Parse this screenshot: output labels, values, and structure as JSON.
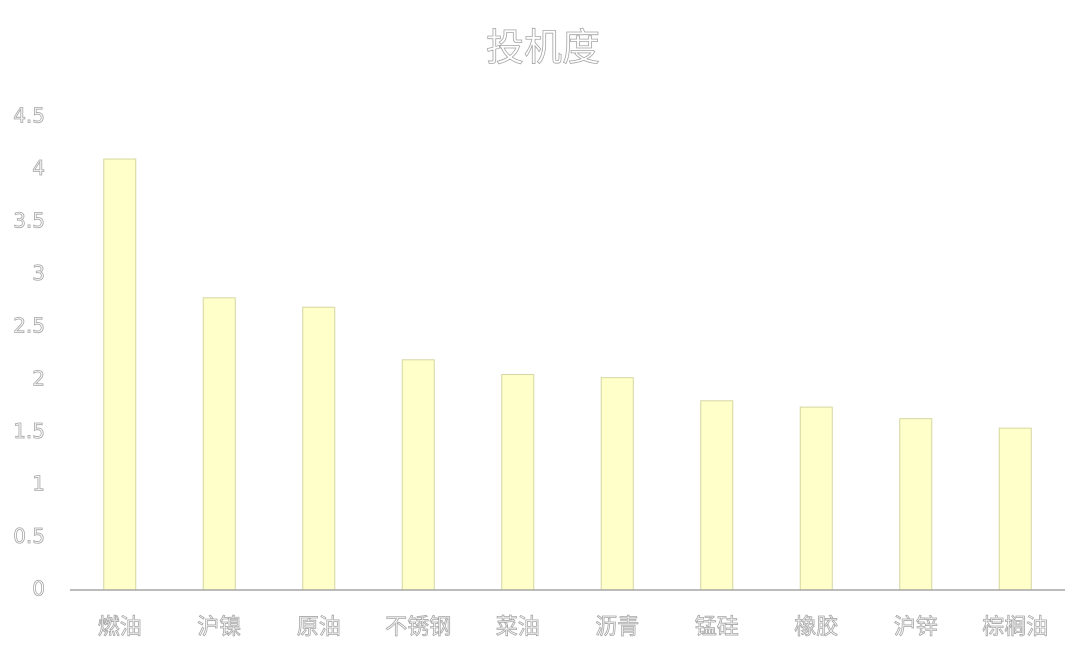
{
  "chart_data": {
    "type": "bar",
    "title": "投机度",
    "categories": [
      "燃油",
      "沪镍",
      "原油",
      "不锈钢",
      "菜油",
      "沥青",
      "锰硅",
      "橡胶",
      "沪锌",
      "棕榈油"
    ],
    "values": [
      4.1,
      2.78,
      2.69,
      2.19,
      2.05,
      2.02,
      1.8,
      1.74,
      1.63,
      1.54
    ],
    "color": "#ffffc9",
    "ylim": [
      0,
      4.5
    ],
    "yticks": [
      0,
      0.5,
      1,
      1.5,
      2,
      2.5,
      3,
      3.5,
      4,
      4.5
    ],
    "grid": false
  }
}
